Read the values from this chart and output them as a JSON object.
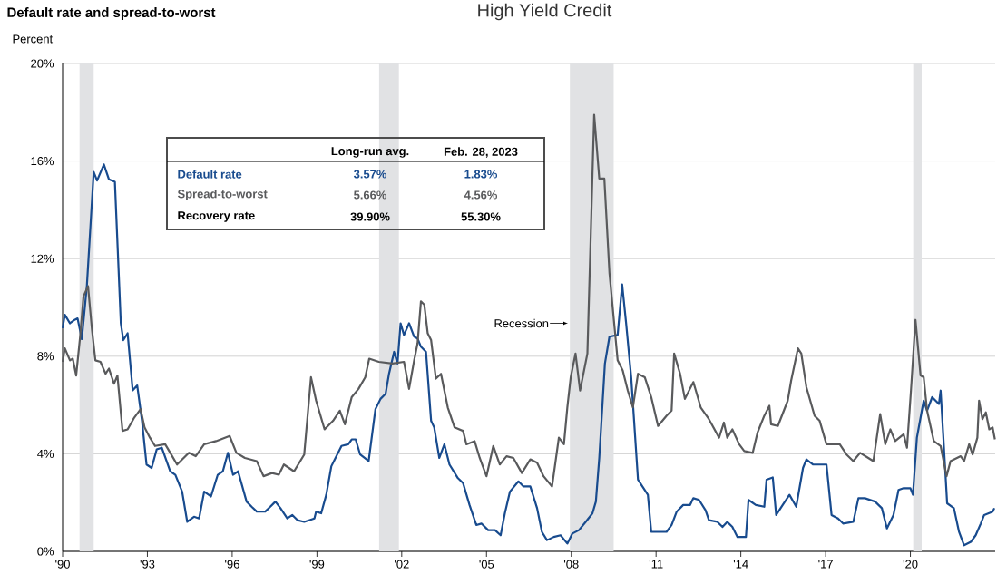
{
  "chart_data": {
    "type": "line",
    "title": "Default rate and spread-to-worst",
    "subtitle": "High Yield Credit",
    "ylabel": "Percent",
    "xlim": [
      1990,
      2023
    ],
    "ylim": [
      0,
      20
    ],
    "xticks": [
      {
        "value": 1990,
        "label": "'90"
      },
      {
        "value": 1993,
        "label": "'93"
      },
      {
        "value": 1996,
        "label": "'96"
      },
      {
        "value": 1999,
        "label": "'99"
      },
      {
        "value": 2002,
        "label": "'02"
      },
      {
        "value": 2005,
        "label": "'05"
      },
      {
        "value": 2008,
        "label": "'08"
      },
      {
        "value": 2011,
        "label": "'11"
      },
      {
        "value": 2014,
        "label": "'14"
      },
      {
        "value": 2017,
        "label": "'17"
      },
      {
        "value": 2020,
        "label": "'20"
      }
    ],
    "yticks": [
      {
        "value": 0,
        "label": "0%"
      },
      {
        "value": 4,
        "label": "4%"
      },
      {
        "value": 8,
        "label": "8%"
      },
      {
        "value": 12,
        "label": "12%"
      },
      {
        "value": 16,
        "label": "16%"
      },
      {
        "value": 20,
        "label": "20%"
      }
    ],
    "grid": "y",
    "bands": [
      {
        "axis": "x",
        "from": 1990.6,
        "to": 1991.1,
        "label": null,
        "color": "#e1e2e4"
      },
      {
        "axis": "x",
        "from": 2001.2,
        "to": 2001.9,
        "label": null,
        "color": "#e1e2e4"
      },
      {
        "axis": "x",
        "from": 2007.95,
        "to": 2009.5,
        "label": "Recession",
        "color": "#e1e2e4"
      },
      {
        "axis": "x",
        "from": 2020.1,
        "to": 2020.4,
        "label": null,
        "color": "#e1e2e4"
      }
    ],
    "annotations": [
      "Long-run avg.",
      "Feb. 28, 2023",
      "3.57%",
      "1.83%",
      "5.66%",
      "4.56%",
      "Recovery rate",
      "39.90%",
      "55.30%"
    ],
    "series": [
      {
        "name": "Default rate",
        "color": "#184b8e",
        "x": [
          1990.0,
          1990.08,
          1990.26,
          1990.44,
          1990.53,
          1990.68,
          1990.86,
          1991.1,
          1991.22,
          1991.46,
          1991.64,
          1991.85,
          1992.06,
          1992.15,
          1992.3,
          1992.48,
          1992.64,
          1992.81,
          1992.97,
          1993.15,
          1993.33,
          1993.51,
          1993.81,
          1993.99,
          1994.23,
          1994.41,
          1994.65,
          1994.83,
          1995.01,
          1995.25,
          1995.49,
          1995.67,
          1995.85,
          1996.03,
          1996.21,
          1996.51,
          1996.69,
          1996.87,
          1997.17,
          1997.35,
          1997.53,
          1997.71,
          1997.95,
          1998.13,
          1998.31,
          1998.55,
          1998.91,
          1998.97,
          1999.15,
          1999.33,
          1999.51,
          1999.87,
          2000.11,
          2000.23,
          2000.37,
          2000.53,
          2000.83,
          2001.07,
          2001.25,
          2001.43,
          2001.55,
          2001.73,
          2001.85,
          2001.96,
          2002.08,
          2002.26,
          2002.44,
          2002.56,
          2002.68,
          2002.86,
          2003.04,
          2003.15,
          2003.33,
          2003.51,
          2003.69,
          2003.99,
          2004.17,
          2004.4,
          2004.64,
          2004.82,
          2005.06,
          2005.3,
          2005.5,
          2005.65,
          2005.83,
          2006.13,
          2006.31,
          2006.55,
          2006.79,
          2006.96,
          2007.14,
          2007.38,
          2007.62,
          2007.86,
          2008.04,
          2008.27,
          2008.51,
          2008.75,
          2008.87,
          2008.99,
          2009.19,
          2009.35,
          2009.64,
          2009.8,
          2009.94,
          2010.12,
          2010.36,
          2010.71,
          2010.83,
          2011.13,
          2011.37,
          2011.55,
          2011.73,
          2011.96,
          2012.2,
          2012.32,
          2012.52,
          2012.75,
          2012.87,
          2013.17,
          2013.35,
          2013.52,
          2013.7,
          2013.88,
          2014.18,
          2014.27,
          2014.53,
          2014.83,
          2014.91,
          2015.13,
          2015.25,
          2015.48,
          2015.72,
          2015.96,
          2016.2,
          2016.32,
          2016.55,
          2017.03,
          2017.21,
          2017.44,
          2017.62,
          2017.98,
          2018.16,
          2018.39,
          2018.75,
          2018.99,
          2019.17,
          2019.4,
          2019.58,
          2019.76,
          2020.0,
          2020.09,
          2020.23,
          2020.47,
          2020.59,
          2020.77,
          2021.01,
          2021.07,
          2021.16,
          2021.3,
          2021.54,
          2021.72,
          2021.9,
          2022.14,
          2022.31,
          2022.49,
          2022.61,
          2022.91,
          2022.97
        ],
        "values": [
          9.15,
          9.7,
          9.35,
          9.5,
          9.55,
          8.7,
          10.9,
          15.55,
          15.2,
          15.86,
          15.25,
          15.15,
          9.35,
          8.66,
          8.94,
          6.6,
          6.8,
          5.35,
          3.56,
          3.42,
          4.18,
          4.25,
          3.28,
          3.14,
          2.45,
          1.21,
          1.42,
          1.35,
          2.45,
          2.25,
          3.14,
          3.28,
          4.04,
          3.14,
          3.28,
          2.04,
          1.83,
          1.63,
          1.63,
          1.83,
          2.04,
          1.77,
          1.35,
          1.49,
          1.28,
          1.21,
          1.35,
          1.63,
          1.56,
          2.32,
          3.49,
          4.32,
          4.39,
          4.59,
          4.59,
          3.97,
          3.7,
          5.83,
          6.25,
          6.46,
          7.28,
          8.18,
          7.7,
          9.35,
          8.87,
          9.35,
          8.8,
          8.73,
          8.39,
          8.18,
          5.35,
          5.08,
          3.83,
          4.39,
          3.56,
          3.0,
          2.8,
          1.9,
          1.08,
          1.14,
          0.87,
          0.87,
          0.66,
          1.56,
          2.45,
          2.87,
          2.66,
          2.66,
          1.77,
          0.8,
          0.46,
          0.59,
          0.66,
          0.32,
          0.73,
          0.87,
          1.21,
          1.56,
          2.04,
          3.83,
          7.7,
          8.8,
          8.87,
          10.94,
          9.35,
          7.14,
          2.94,
          2.32,
          0.8,
          0.8,
          0.8,
          1.08,
          1.63,
          1.9,
          1.9,
          2.18,
          2.11,
          1.69,
          1.28,
          1.21,
          1.0,
          1.21,
          1.0,
          0.59,
          0.59,
          2.11,
          1.9,
          1.83,
          2.94,
          3.03,
          1.49,
          1.9,
          2.32,
          1.83,
          3.42,
          3.77,
          3.56,
          3.56,
          1.49,
          1.35,
          1.14,
          1.21,
          2.18,
          2.18,
          2.04,
          1.77,
          0.94,
          1.49,
          2.52,
          2.59,
          2.59,
          2.32,
          4.66,
          6.18,
          5.77,
          6.32,
          6.04,
          6.59,
          4.8,
          1.97,
          1.77,
          0.8,
          0.25,
          0.39,
          0.66,
          1.14,
          1.49,
          1.63,
          1.77
        ]
      },
      {
        "name": "Spread-to-worst",
        "color": "#595a5c",
        "x": [
          1990.0,
          1990.08,
          1990.26,
          1990.36,
          1990.48,
          1990.62,
          1990.74,
          1990.9,
          1991.04,
          1991.16,
          1991.34,
          1991.52,
          1991.64,
          1991.82,
          1991.94,
          1992.12,
          1992.3,
          1992.54,
          1992.76,
          1992.9,
          1993.09,
          1993.27,
          1993.63,
          1993.81,
          1994.05,
          1994.47,
          1994.71,
          1995.01,
          1995.43,
          1995.91,
          1996.15,
          1996.45,
          1996.87,
          1997.11,
          1997.41,
          1997.65,
          1997.83,
          1998.19,
          1998.55,
          1998.79,
          1998.97,
          1999.27,
          1999.57,
          1999.81,
          1999.99,
          2000.23,
          2000.47,
          2000.71,
          2000.85,
          2001.19,
          2001.67,
          2002.08,
          2002.26,
          2002.44,
          2002.56,
          2002.68,
          2002.8,
          2002.92,
          2003.04,
          2003.21,
          2003.39,
          2003.63,
          2003.87,
          2004.17,
          2004.29,
          2004.58,
          2004.76,
          2005.0,
          2005.24,
          2005.47,
          2005.71,
          2005.95,
          2006.25,
          2006.55,
          2006.79,
          2007.02,
          2007.32,
          2007.56,
          2007.74,
          2007.86,
          2007.98,
          2008.15,
          2008.31,
          2008.57,
          2008.81,
          2008.99,
          2009.17,
          2009.35,
          2009.64,
          2009.82,
          2010.0,
          2010.18,
          2010.36,
          2010.6,
          2010.83,
          2011.07,
          2011.37,
          2011.55,
          2011.64,
          2011.85,
          2012.02,
          2012.32,
          2012.58,
          2012.87,
          2013.23,
          2013.4,
          2013.52,
          2013.7,
          2013.94,
          2014.12,
          2014.42,
          2014.59,
          2014.83,
          2015.01,
          2015.07,
          2015.31,
          2015.66,
          2015.78,
          2016.02,
          2016.14,
          2016.32,
          2016.61,
          2016.79,
          2017.03,
          2017.5,
          2017.74,
          2017.98,
          2018.22,
          2018.51,
          2018.69,
          2018.93,
          2019.11,
          2019.29,
          2019.46,
          2019.76,
          2019.88,
          2020.02,
          2020.18,
          2020.36,
          2020.47,
          2020.59,
          2020.83,
          2021.07,
          2021.28,
          2021.42,
          2021.78,
          2021.9,
          2022.08,
          2022.2,
          2022.37,
          2022.43,
          2022.55,
          2022.67,
          2022.79,
          2022.91,
          2022.99
        ],
        "values": [
          7.77,
          8.32,
          7.83,
          7.9,
          7.21,
          8.8,
          10.46,
          10.87,
          9.08,
          7.83,
          7.77,
          7.28,
          7.49,
          6.87,
          7.21,
          4.94,
          5.0,
          5.49,
          5.83,
          5.08,
          4.66,
          4.32,
          4.39,
          4.04,
          3.56,
          4.04,
          3.9,
          4.39,
          4.52,
          4.73,
          4.04,
          3.83,
          3.7,
          3.08,
          3.21,
          3.14,
          3.56,
          3.28,
          3.97,
          7.14,
          6.18,
          5.0,
          5.35,
          5.77,
          5.21,
          6.32,
          6.66,
          7.14,
          7.9,
          7.77,
          7.7,
          7.77,
          6.66,
          7.83,
          8.52,
          10.25,
          10.11,
          8.94,
          8.66,
          7.08,
          7.28,
          5.9,
          5.08,
          4.94,
          4.39,
          4.52,
          3.83,
          3.08,
          4.32,
          3.56,
          3.9,
          3.83,
          3.21,
          3.77,
          3.63,
          3.08,
          2.66,
          4.66,
          4.39,
          5.9,
          7.14,
          8.11,
          6.59,
          8.11,
          17.9,
          15.28,
          15.28,
          11.42,
          7.83,
          7.42,
          6.59,
          5.9,
          7.28,
          7.14,
          6.32,
          5.14,
          5.56,
          5.77,
          8.11,
          7.28,
          6.25,
          6.94,
          5.9,
          5.42,
          4.66,
          5.28,
          4.66,
          5.0,
          4.39,
          4.11,
          4.04,
          4.87,
          5.56,
          5.97,
          5.21,
          5.14,
          6.18,
          7.0,
          8.32,
          8.11,
          6.73,
          5.56,
          5.35,
          4.39,
          4.39,
          3.97,
          3.7,
          4.04,
          3.83,
          3.7,
          5.63,
          4.39,
          5.0,
          4.52,
          4.8,
          4.25,
          6.59,
          9.49,
          7.21,
          7.14,
          5.77,
          4.52,
          4.32,
          3.08,
          3.7,
          3.9,
          3.7,
          4.39,
          3.97,
          4.66,
          6.18,
          5.42,
          5.7,
          5.0,
          5.08,
          4.59
        ]
      }
    ]
  }
}
